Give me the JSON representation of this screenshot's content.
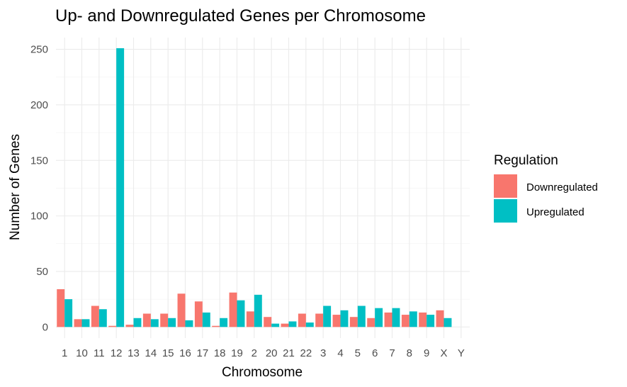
{
  "chart_data": {
    "type": "bar",
    "title": "Up- and Downregulated Genes per Chromosome",
    "xlabel": "Chromosome",
    "ylabel": "Number of Genes",
    "ylim": [
      0,
      260
    ],
    "yticks": [
      "0",
      "50",
      "100",
      "150",
      "200",
      "250"
    ],
    "grid": true,
    "legend_position": "right",
    "legend_title": "Regulation",
    "categories": [
      "1",
      "10",
      "11",
      "12",
      "13",
      "14",
      "15",
      "16",
      "17",
      "18",
      "19",
      "2",
      "20",
      "21",
      "22",
      "3",
      "4",
      "5",
      "6",
      "7",
      "8",
      "9",
      "X",
      "Y"
    ],
    "series": [
      {
        "name": "Downregulated",
        "color": "#f8766d",
        "values": [
          34,
          7,
          19,
          1,
          2,
          12,
          12,
          30,
          23,
          1,
          31,
          14,
          9,
          3,
          12,
          12,
          11,
          9,
          8,
          13,
          11,
          13,
          15,
          0
        ]
      },
      {
        "name": "Upregulated",
        "color": "#00bfc4",
        "values": [
          25,
          7,
          16,
          251,
          8,
          7,
          8,
          6,
          13,
          8,
          24,
          29,
          3,
          5,
          4,
          19,
          15,
          19,
          17,
          17,
          14,
          11,
          8,
          0
        ]
      }
    ]
  }
}
